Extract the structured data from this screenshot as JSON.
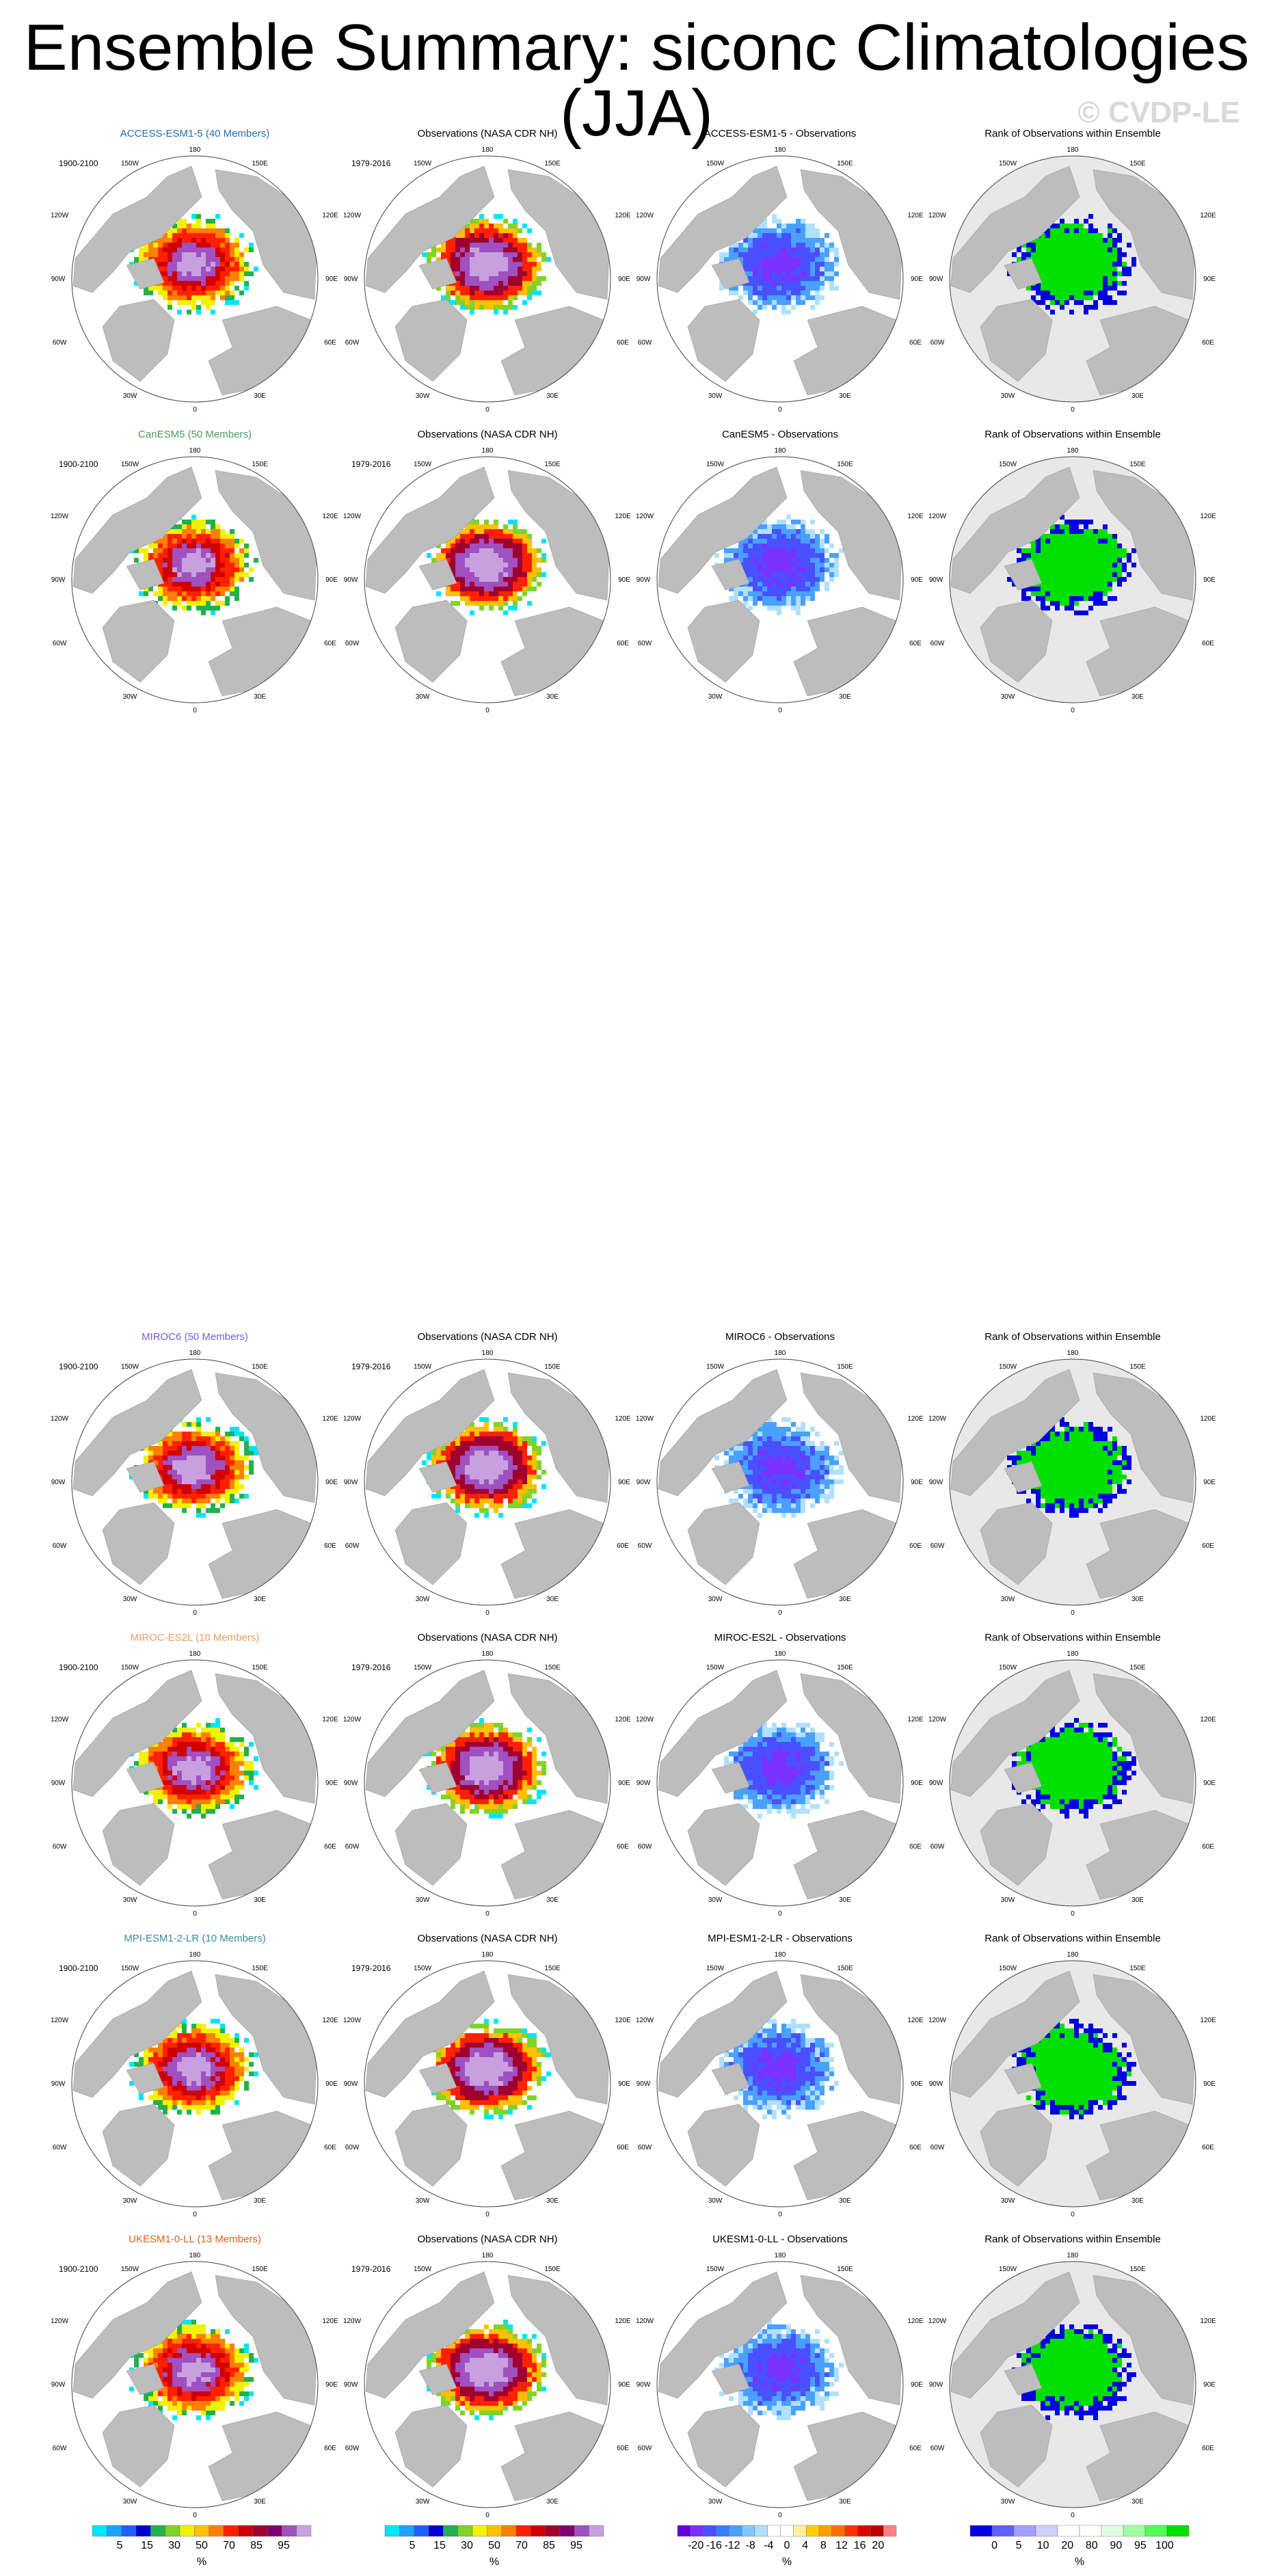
{
  "title": "Ensemble Summary: siconc Climatologies (JJA)",
  "watermark": "© CVDP-LE",
  "map_labels": {
    "lon": [
      "180",
      "150W",
      "150E",
      "120W",
      "120E",
      "90W",
      "90E",
      "60W",
      "60E",
      "30W",
      "30E",
      "0"
    ]
  },
  "rows": [
    {
      "model": "ACCESS-ESM1-5 (40 Members)",
      "model_color": "#1f6fb0",
      "years_model": "1900-2100",
      "obs_title": "Observations (NASA CDR NH)",
      "years_obs": "1979-2016",
      "diff_title": "ACCESS-ESM1-5 - Observations",
      "rank_title": "Rank of Observations within Ensemble"
    },
    {
      "model": "CanESM5 (50 Members)",
      "model_color": "#4a9a5c",
      "years_model": "1900-2100",
      "obs_title": "Observations (NASA CDR NH)",
      "years_obs": "1979-2016",
      "diff_title": "CanESM5 - Observations",
      "rank_title": "Rank of Observations within Ensemble"
    },
    {
      "model": "MIROC6 (50 Members)",
      "model_color": "#7a5cd6",
      "years_model": "1900-2100",
      "obs_title": "Observations (NASA CDR NH)",
      "years_obs": "1979-2016",
      "diff_title": "MIROC6 - Observations",
      "rank_title": "Rank of Observations within Ensemble"
    },
    {
      "model": "MIROC-ES2L (10 Members)",
      "model_color": "#e6a060",
      "years_model": "1900-2100",
      "obs_title": "Observations (NASA CDR NH)",
      "years_obs": "1979-2016",
      "diff_title": "MIROC-ES2L - Observations",
      "rank_title": "Rank of Observations within Ensemble"
    },
    {
      "model": "MPI-ESM1-2-LR (10 Members)",
      "model_color": "#3b8aa8",
      "years_model": "1900-2100",
      "obs_title": "Observations (NASA CDR NH)",
      "years_obs": "1979-2016",
      "diff_title": "MPI-ESM1-2-LR - Observations",
      "rank_title": "Rank of Observations within Ensemble"
    },
    {
      "model": "UKESM1-0-LL (13 Members)",
      "model_color": "#e06020",
      "years_model": "1900-2100",
      "obs_title": "Observations (NASA CDR NH)",
      "years_obs": "1979-2016",
      "diff_title": "UKESM1-0-LL - Observations",
      "rank_title": "Rank of Observations within Ensemble"
    }
  ],
  "colorbars": [
    {
      "kind": "concentration",
      "unit": "%",
      "ticks": [
        "5",
        "15",
        "30",
        "50",
        "70",
        "85",
        "95"
      ],
      "colors": [
        "#00e5ff",
        "#1aa3ff",
        "#1f5fff",
        "#0000d0",
        "#22b14c",
        "#7fd32a",
        "#f2f200",
        "#ffc000",
        "#ff8000",
        "#ff2000",
        "#d00000",
        "#a00030",
        "#800070",
        "#a050c0",
        "#c8a0e0"
      ]
    },
    {
      "kind": "concentration",
      "unit": "%",
      "ticks": [
        "5",
        "15",
        "30",
        "50",
        "70",
        "85",
        "95"
      ],
      "colors": [
        "#00e5ff",
        "#1aa3ff",
        "#1f5fff",
        "#0000d0",
        "#22b14c",
        "#7fd32a",
        "#f2f200",
        "#ffc000",
        "#ff8000",
        "#ff2000",
        "#d00000",
        "#a00030",
        "#800070",
        "#a050c0",
        "#c8a0e0"
      ]
    },
    {
      "kind": "difference",
      "unit": "%",
      "ticks": [
        "-20",
        "-16",
        "-12",
        "-8",
        "-4",
        "0",
        "4",
        "8",
        "12",
        "16",
        "20"
      ],
      "colors": [
        "#6a00d8",
        "#7a30ff",
        "#4a50ff",
        "#3a7aff",
        "#4aa0ff",
        "#80c8ff",
        "#b0e0ff",
        "#ffffff",
        "#ffffff",
        "#fff0a0",
        "#ffd000",
        "#ffa000",
        "#ff7000",
        "#ff3000",
        "#e00000",
        "#c00000",
        "#ff8080"
      ]
    },
    {
      "kind": "rank",
      "unit": "%",
      "ticks": [
        "0",
        "5",
        "10",
        "20",
        "80",
        "90",
        "95",
        "100"
      ],
      "colors": [
        "#0000e0",
        "#6060ff",
        "#a0a0ff",
        "#d0d0ff",
        "#ffffff",
        "#ffffff",
        "#e0ffe0",
        "#a0ffa0",
        "#50ff50",
        "#00e000"
      ]
    }
  ]
}
